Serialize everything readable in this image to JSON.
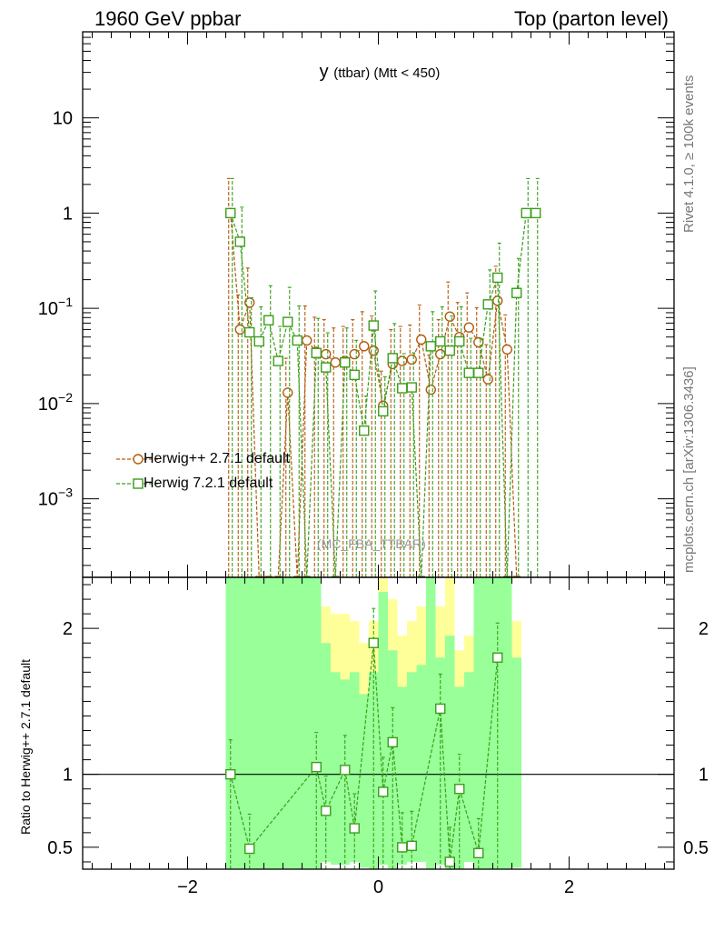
{
  "header": {
    "left": "1960 GeV ppbar",
    "right": "Top (parton level)"
  },
  "side": {
    "rivet": "Rivet 4.1.0, ≥ 100k events",
    "mcplots": "mcplots.cern.ch [arXiv:1306.3436]"
  },
  "title": {
    "main": "y",
    "sub": "(ttbar) (Mtt < 450)"
  },
  "watermark": "(MC_FBA_TTBAR)",
  "colors": {
    "herwigpp": "#b35a0e",
    "herwig7": "#3a9e1a",
    "band_inner": "#99ff99",
    "band_outer": "#ffff99"
  },
  "chart_data": [
    {
      "type": "line",
      "title": "y (ttbar) (Mtt < 450)",
      "xlabel": "",
      "ylabel": "",
      "xlim": [
        -3.1,
        3.1
      ],
      "ylim": [
        0.00015,
        80
      ],
      "yscale": "log",
      "x_ticks": [
        -2,
        0,
        2
      ],
      "x_tick_labels": [
        "−2",
        "0",
        "2"
      ],
      "y_ticks": [
        0.001,
        0.01,
        0.1,
        1,
        10
      ],
      "y_tick_labels": [
        {
          "base": "10",
          "exp": "−3"
        },
        {
          "base": "10",
          "exp": "−2"
        },
        {
          "base": "10",
          "exp": "−1"
        },
        {
          "base": "1",
          "exp": ""
        },
        {
          "base": "10",
          "exp": ""
        }
      ],
      "legend_position": "bottom-left",
      "series": [
        {
          "name": "Herwig++ 2.7.1 default",
          "marker": "circle",
          "x": [
            -1.55,
            -1.45,
            -1.35,
            -1.25,
            -1.15,
            -1.05,
            -0.95,
            -0.85,
            -0.75,
            -0.65,
            -0.55,
            -0.45,
            -0.35,
            -0.25,
            -0.15,
            -0.05,
            0.05,
            0.15,
            0.25,
            0.35,
            0.45,
            0.55,
            0.65,
            0.75,
            0.85,
            0.95,
            1.05,
            1.15,
            1.25,
            1.35,
            1.45
          ],
          "y": [
            1.0,
            0.06,
            0.115,
            0,
            0,
            0,
            0.013,
            0,
            0.046,
            0.035,
            0.033,
            0.027,
            0.028,
            0.033,
            0.04,
            0.036,
            0.0095,
            0.026,
            0.028,
            0.029,
            0.047,
            0.014,
            0.033,
            0.082,
            0.05,
            0.063,
            0.044,
            0.018,
            0.12,
            0.037,
            0
          ]
        },
        {
          "name": "Herwig 7.2.1 default",
          "marker": "square",
          "x": [
            -1.55,
            -1.45,
            -1.35,
            -1.25,
            -1.15,
            -1.05,
            -0.95,
            -0.85,
            -0.75,
            -0.65,
            -0.55,
            -0.45,
            -0.35,
            -0.25,
            -0.15,
            -0.05,
            0.05,
            0.15,
            0.25,
            0.35,
            0.45,
            0.55,
            0.65,
            0.75,
            0.85,
            0.95,
            1.05,
            1.15,
            1.25,
            1.35,
            1.45,
            1.55,
            1.65
          ],
          "y": [
            1.0,
            0.5,
            0.056,
            0.045,
            0.075,
            0.028,
            0.072,
            0.046,
            0,
            0.034,
            0.024,
            0,
            0.027,
            0.02,
            0.0052,
            0.066,
            0.0083,
            0.03,
            0.0145,
            0.0148,
            0,
            0.04,
            0.045,
            0.036,
            0.045,
            0.021,
            0.021,
            0.11,
            0.21,
            0,
            0.145,
            1.0,
            1.0
          ]
        }
      ]
    },
    {
      "type": "line",
      "title": "",
      "xlabel": "",
      "ylabel": "Ratio to Herwig++ 2.7.1 default",
      "xlim": [
        -3.1,
        3.1
      ],
      "ylim": [
        0.35,
        2.35
      ],
      "y_ticks": [
        0.5,
        1,
        2
      ],
      "y_tick_labels": [
        "0.5",
        "1",
        "2"
      ],
      "x_ticks": [
        -2,
        0,
        2
      ],
      "x_tick_labels": [
        "−2",
        "0",
        "2"
      ],
      "reference_line": 1,
      "series": [
        {
          "name": "Herwig 7.2.1 default / Herwig++ 2.7.1 default",
          "marker": "square",
          "x": [
            -1.55,
            -1.35,
            -0.65,
            -0.55,
            -0.35,
            -0.25,
            -0.05,
            0.05,
            0.15,
            0.25,
            0.35,
            0.65,
            0.75,
            0.85,
            1.05,
            1.25
          ],
          "y": [
            1.0,
            0.49,
            1.05,
            0.75,
            1.03,
            0.63,
            1.9,
            0.88,
            1.22,
            0.5,
            0.51,
            1.45,
            0.4,
            0.9,
            0.46,
            1.8
          ]
        }
      ],
      "band": {
        "x_edges": [
          -1.6,
          -1.5,
          -1.4,
          -1.3,
          -1.2,
          -1.1,
          -1.0,
          -0.9,
          -0.8,
          -0.7,
          -0.6,
          -0.5,
          -0.4,
          -0.3,
          -0.2,
          -0.1,
          0.0,
          0.1,
          0.2,
          0.3,
          0.4,
          0.5,
          0.6,
          0.7,
          0.8,
          0.9,
          1.0,
          1.1,
          1.2,
          1.3,
          1.4,
          1.5
        ],
        "inner_low": [
          0.35,
          0.35,
          0.35,
          0.35,
          0.35,
          0.35,
          0.35,
          0.35,
          0.35,
          0.35,
          0.4,
          0.38,
          0.38,
          0.4,
          0.36,
          0.35,
          0.38,
          0.35,
          0.38,
          0.4,
          0.4,
          0.35,
          0.38,
          0.35,
          0.35,
          0.4,
          0.35,
          0.35,
          0.35,
          0.35,
          0.36
        ],
        "inner_high": [
          2.35,
          2.35,
          2.35,
          2.35,
          2.35,
          2.35,
          2.35,
          2.35,
          2.35,
          2.35,
          1.9,
          1.7,
          1.65,
          1.7,
          1.55,
          1.7,
          2.25,
          1.85,
          1.6,
          1.7,
          1.75,
          2.35,
          1.8,
          1.95,
          1.6,
          1.7,
          2.35,
          2.35,
          2.35,
          2.35,
          1.8
        ],
        "outer_low": [
          0.35,
          0.35,
          0.35,
          0.35,
          0.35,
          0.35,
          0.35,
          0.35,
          0.35,
          0.35,
          0.5,
          0.6,
          0.55,
          0.65,
          0.45,
          0.4,
          0.45,
          0.38,
          0.55,
          0.58,
          0.62,
          0.35,
          0.4,
          0.35,
          0.4,
          0.48,
          0.35,
          0.35,
          0.35,
          0.35,
          0.38
        ],
        "outer_high": [
          2.35,
          2.35,
          2.35,
          2.35,
          2.35,
          2.35,
          2.35,
          2.35,
          2.35,
          2.35,
          2.15,
          2.1,
          2.1,
          2.05,
          1.9,
          2.05,
          2.35,
          2.2,
          1.95,
          2.05,
          2.15,
          2.35,
          2.15,
          2.35,
          1.85,
          1.95,
          2.35,
          2.35,
          2.35,
          2.35,
          2.05
        ]
      }
    }
  ]
}
